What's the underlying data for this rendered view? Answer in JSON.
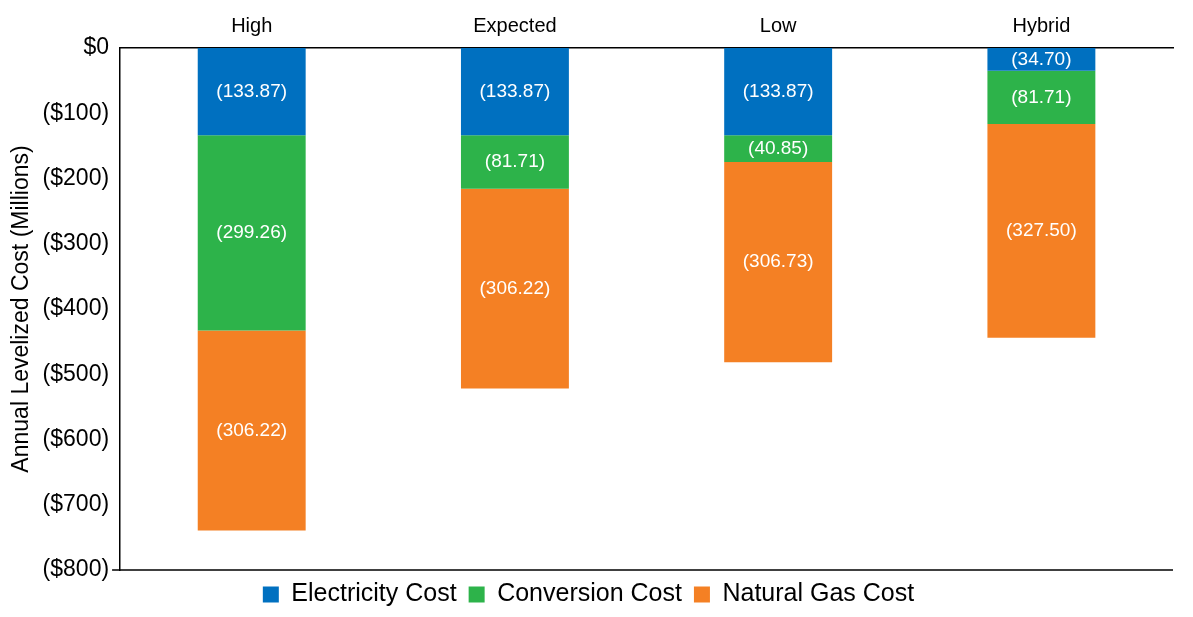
{
  "chart_data": {
    "type": "bar",
    "stacked": true,
    "ylabel": "Annual Levelized Cost (Millions)",
    "categories": [
      "High",
      "Expected",
      "Low",
      "Hybrid"
    ],
    "series": [
      {
        "name": "Electricity Cost",
        "color": "#0070c0",
        "values": [
          -133.87,
          -133.87,
          -133.87,
          -34.7
        ],
        "value_labels": [
          "(133.87)",
          "(133.87)",
          "(133.87)",
          "(34.70)"
        ]
      },
      {
        "name": "Conversion Cost",
        "color": "#2db34a",
        "values": [
          -299.26,
          -81.71,
          -40.85,
          -81.71
        ],
        "value_labels": [
          "(299.26)",
          "(81.71)",
          "(40.85)",
          "(81.71)"
        ]
      },
      {
        "name": "Natural Gas Cost",
        "color": "#f48024",
        "values": [
          -306.22,
          -306.22,
          -306.73,
          -327.5
        ],
        "value_labels": [
          "(306.22)",
          "(306.22)",
          "(306.73)",
          "(327.50)"
        ]
      }
    ],
    "ylim": [
      -800,
      0
    ],
    "yticks": [
      {
        "value": 0,
        "label": "$0"
      },
      {
        "value": -100,
        "label": "($100)"
      },
      {
        "value": -200,
        "label": "($200)"
      },
      {
        "value": -300,
        "label": "($300)"
      },
      {
        "value": -400,
        "label": "($400)"
      },
      {
        "value": -500,
        "label": "($500)"
      },
      {
        "value": -600,
        "label": "($600)"
      },
      {
        "value": -700,
        "label": "($700)"
      },
      {
        "value": -800,
        "label": "($800)"
      }
    ],
    "grid": false,
    "legend": "bottom"
  }
}
